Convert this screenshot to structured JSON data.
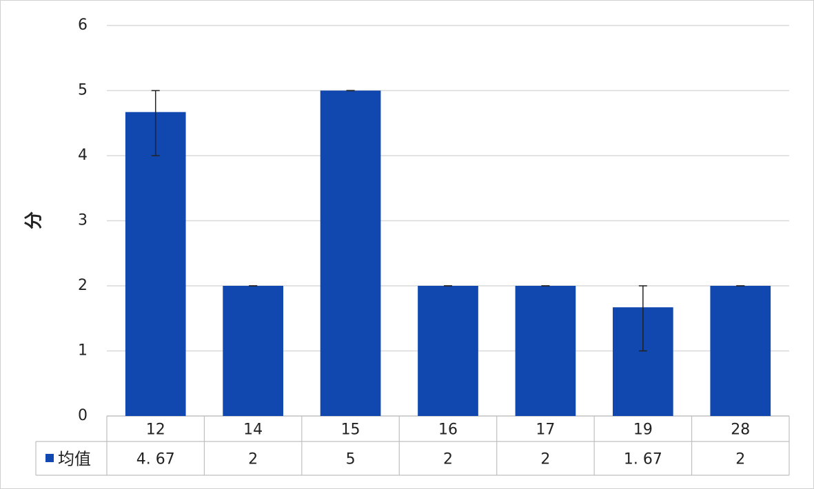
{
  "chart_data": {
    "type": "bar",
    "y_label": "分",
    "categories": [
      "12",
      "14",
      "15",
      "16",
      "17",
      "19",
      "28"
    ],
    "series": [
      {
        "name": "均值",
        "color": "#1048b0",
        "values": [
          4.67,
          2,
          5,
          2,
          2,
          1.67,
          2
        ],
        "value_labels": [
          "4. 67",
          "2",
          "5",
          "2",
          "2",
          "1. 67",
          "2"
        ],
        "error_minus": [
          0.67,
          0,
          0,
          0,
          0,
          0.67,
          0
        ],
        "error_plus": [
          0.33,
          0,
          0,
          0,
          0,
          0.33,
          0
        ]
      }
    ],
    "ylim": [
      0,
      6
    ],
    "yticks": [
      0,
      1,
      2,
      3,
      4,
      5,
      6
    ],
    "grid": true
  }
}
